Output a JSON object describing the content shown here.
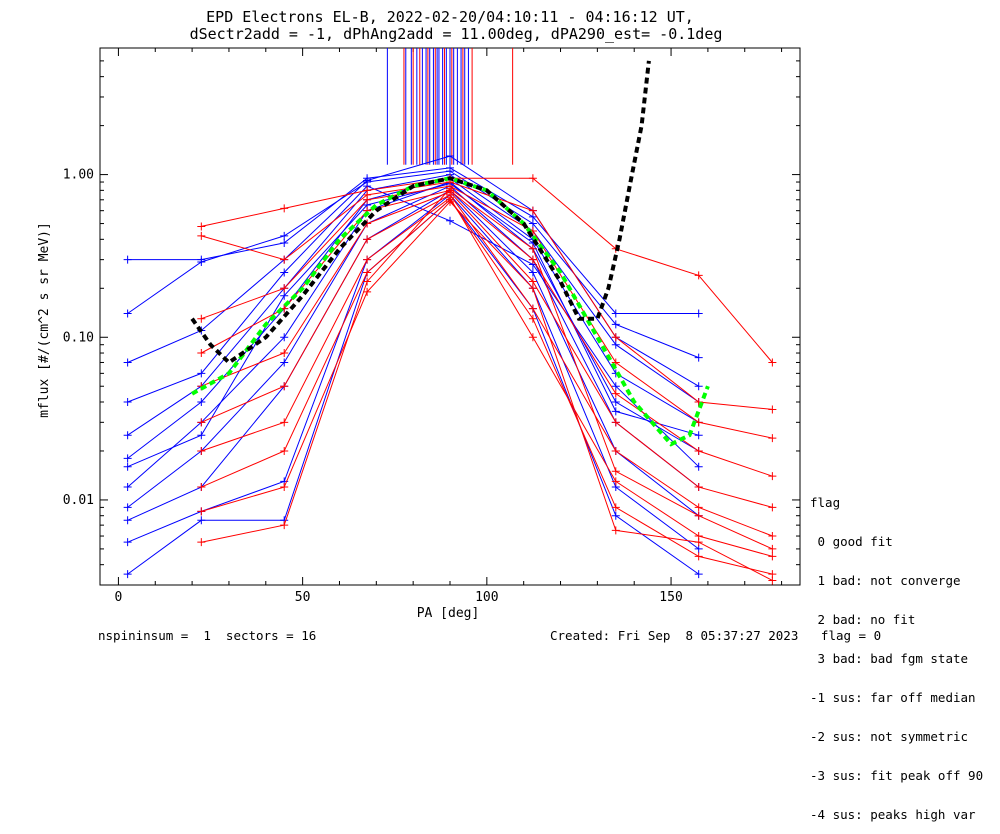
{
  "chart_data": {
    "type": "line",
    "title": [
      "EPD Electrons EL-B, 2022-02-20/04:10:11 - 04:16:12 UT,",
      "dSectr2add = -1, dPhAng2add = 11.00deg, dPA290_est=  -0.1deg"
    ],
    "xlabel": "PA [deg]",
    "ylabel": "mflux [#/(cm^2 s sr MeV)]",
    "xlim": [
      -5,
      185
    ],
    "ylim": [
      0.003,
      6.0
    ],
    "yscale": "log",
    "x_ticks": [
      0,
      50,
      100,
      150
    ],
    "y_ticks": [
      0.01,
      0.1,
      1.0
    ],
    "y_tick_labels": [
      "0.01",
      "0.10",
      "1.00"
    ],
    "series": [
      {
        "color": "#0000ff",
        "x": [
          2.5,
          22.5,
          45,
          67.5,
          90,
          112.5,
          135,
          157.5
        ],
        "y": [
          0.3,
          0.3,
          0.38,
          0.95,
          1.1,
          0.55,
          0.14,
          0.14
        ]
      },
      {
        "color": "#0000ff",
        "x": [
          2.5,
          22.5,
          45,
          67.5,
          90,
          112.5,
          135,
          157.5
        ],
        "y": [
          0.14,
          0.29,
          0.42,
          0.9,
          1.05,
          0.5,
          0.12,
          0.075
        ]
      },
      {
        "color": "#0000ff",
        "x": [
          2.5,
          22.5,
          45,
          67.5,
          90,
          112.5,
          135,
          157.5
        ],
        "y": [
          0.025,
          0.05,
          0.2,
          0.8,
          1.0,
          0.45,
          0.09,
          0.04
        ]
      },
      {
        "color": "#0000ff",
        "x": [
          2.5,
          22.5,
          45,
          67.5,
          90,
          112.5,
          135,
          157.5
        ],
        "y": [
          0.018,
          0.04,
          0.15,
          0.7,
          0.95,
          0.4,
          0.06,
          0.03
        ]
      },
      {
        "color": "#0000ff",
        "x": [
          2.5,
          22.5,
          45,
          67.5,
          90,
          112.5,
          135,
          157.5
        ],
        "y": [
          0.012,
          0.03,
          0.1,
          0.6,
          0.9,
          0.35,
          0.04,
          0.02
        ]
      },
      {
        "color": "#0000ff",
        "x": [
          2.5,
          22.5,
          45,
          67.5,
          90,
          112.5,
          135,
          157.5
        ],
        "y": [
          0.009,
          0.02,
          0.07,
          0.5,
          0.85,
          0.3,
          0.03,
          0.012
        ]
      },
      {
        "color": "#0000ff",
        "x": [
          2.5,
          22.5,
          45,
          67.5,
          90,
          112.5,
          135,
          157.5
        ],
        "y": [
          0.0075,
          0.012,
          0.05,
          0.4,
          0.8,
          0.25,
          0.02,
          0.008
        ]
      },
      {
        "color": "#0000ff",
        "x": [
          2.5,
          22.5,
          45,
          67.5,
          90,
          112.5,
          135,
          157.5
        ],
        "y": [
          0.0055,
          0.0085,
          0.013,
          0.3,
          0.75,
          0.2,
          0.012,
          0.005
        ]
      },
      {
        "color": "#0000ff",
        "x": [
          2.5,
          22.5,
          45,
          67.5,
          90,
          112.5,
          135,
          157.5
        ],
        "y": [
          0.0035,
          0.0075,
          0.0075,
          0.25,
          0.7,
          0.15,
          0.008,
          0.0035
        ]
      },
      {
        "color": "#0000ff",
        "x": [
          2.5,
          22.5,
          45,
          67.5,
          90,
          112.5,
          135,
          157.5
        ],
        "y": [
          0.04,
          0.06,
          0.25,
          0.85,
          0.52,
          0.28,
          0.05,
          0.016
        ]
      },
      {
        "color": "#0000ff",
        "x": [
          2.5,
          22.5,
          45,
          67.5,
          90,
          112.5,
          135,
          157.5
        ],
        "y": [
          0.07,
          0.11,
          0.3,
          0.92,
          1.3,
          0.6,
          0.1,
          0.05
        ]
      },
      {
        "color": "#0000ff",
        "x": [
          2.5,
          22.5,
          45,
          67.5,
          90,
          112.5,
          135,
          157.5
        ],
        "y": [
          0.016,
          0.025,
          0.18,
          0.65,
          0.88,
          0.38,
          0.035,
          0.025
        ]
      },
      {
        "color": "#ff0000",
        "x": [
          22.5,
          45,
          67.5,
          90,
          112.5,
          135,
          157.5,
          177.5
        ],
        "y": [
          0.48,
          0.62,
          0.8,
          0.95,
          0.95,
          0.35,
          0.24,
          0.07
        ]
      },
      {
        "color": "#ff0000",
        "x": [
          22.5,
          45,
          67.5,
          90,
          112.5,
          135,
          157.5,
          177.5
        ],
        "y": [
          0.42,
          0.3,
          0.75,
          0.9,
          0.6,
          0.1,
          0.04,
          0.036
        ]
      },
      {
        "color": "#ff0000",
        "x": [
          22.5,
          45,
          67.5,
          90,
          112.5,
          135,
          157.5,
          177.5
        ],
        "y": [
          0.13,
          0.2,
          0.7,
          0.85,
          0.45,
          0.07,
          0.03,
          0.024
        ]
      },
      {
        "color": "#ff0000",
        "x": [
          22.5,
          45,
          67.5,
          90,
          112.5,
          135,
          157.5,
          177.5
        ],
        "y": [
          0.08,
          0.15,
          0.6,
          0.8,
          0.3,
          0.045,
          0.02,
          0.014
        ]
      },
      {
        "color": "#ff0000",
        "x": [
          22.5,
          45,
          67.5,
          90,
          112.5,
          135,
          157.5,
          177.5
        ],
        "y": [
          0.05,
          0.08,
          0.5,
          0.78,
          0.22,
          0.03,
          0.012,
          0.009
        ]
      },
      {
        "color": "#ff0000",
        "x": [
          22.5,
          45,
          67.5,
          90,
          112.5,
          135,
          157.5,
          177.5
        ],
        "y": [
          0.03,
          0.05,
          0.4,
          0.75,
          0.15,
          0.02,
          0.009,
          0.006
        ]
      },
      {
        "color": "#ff0000",
        "x": [
          22.5,
          45,
          67.5,
          90,
          112.5,
          135,
          157.5,
          177.5
        ],
        "y": [
          0.02,
          0.03,
          0.3,
          0.72,
          0.1,
          0.013,
          0.006,
          0.0045
        ]
      },
      {
        "color": "#ff0000",
        "x": [
          22.5,
          45,
          67.5,
          90,
          112.5,
          135,
          157.5,
          177.5
        ],
        "y": [
          0.012,
          0.02,
          0.25,
          0.7,
          0.13,
          0.009,
          0.0045,
          0.0035
        ]
      },
      {
        "color": "#ff0000",
        "x": [
          22.5,
          45,
          67.5,
          90,
          112.5,
          135,
          157.5,
          177.5
        ],
        "y": [
          0.0085,
          0.012,
          0.19,
          0.68,
          0.2,
          0.0065,
          0.0055,
          0.0032
        ]
      },
      {
        "color": "#ff0000",
        "x": [
          22.5,
          45,
          67.5,
          90,
          112.5,
          135,
          157.5,
          177.5
        ],
        "y": [
          0.0055,
          0.007,
          0.22,
          0.82,
          0.35,
          0.015,
          0.008,
          0.005
        ]
      }
    ],
    "fit_curves": [
      {
        "color": "#00ff00",
        "style": "dashed",
        "x": [
          20,
          30,
          40,
          50,
          60,
          70,
          80,
          90,
          100,
          110,
          120,
          130,
          140,
          150,
          155,
          160
        ],
        "y": [
          0.045,
          0.06,
          0.12,
          0.2,
          0.4,
          0.65,
          0.85,
          0.95,
          0.8,
          0.5,
          0.25,
          0.1,
          0.04,
          0.022,
          0.025,
          0.05
        ]
      },
      {
        "color": "#000000",
        "style": "dashed",
        "x": [
          20,
          25,
          30,
          40,
          50,
          60,
          70,
          80,
          90,
          100,
          110,
          120,
          125,
          130,
          133,
          136,
          139,
          142,
          144
        ],
        "y": [
          0.13,
          0.09,
          0.07,
          0.1,
          0.18,
          0.35,
          0.6,
          0.85,
          0.95,
          0.8,
          0.5,
          0.22,
          0.13,
          0.13,
          0.2,
          0.4,
          0.9,
          2.0,
          5.0
        ]
      }
    ],
    "peak_markers": {
      "blue_x": [
        73,
        78,
        79.5,
        81,
        82.5,
        83.5,
        84.5,
        85.5,
        86.5,
        87,
        88,
        89,
        90,
        91,
        92,
        93,
        94,
        95
      ],
      "red_x": [
        77.5,
        80,
        81.8,
        84,
        86,
        88.5,
        90.5,
        93.5,
        96,
        107
      ]
    },
    "legend_title": "flag",
    "legend_items": [
      " 0 good fit",
      " 1 bad: not converge",
      " 2 bad: no fit",
      " 3 bad: bad fgm state",
      "-1 sus: far off median",
      "-2 sus: not symmetric",
      "-3 sus: fit peak off 90",
      "-4 sus: peaks high var"
    ]
  },
  "footer": {
    "left": "nspininsum =  1  sectors = 16",
    "right": "Created: Fri Sep  8 05:37:27 2023   flag = 0"
  }
}
